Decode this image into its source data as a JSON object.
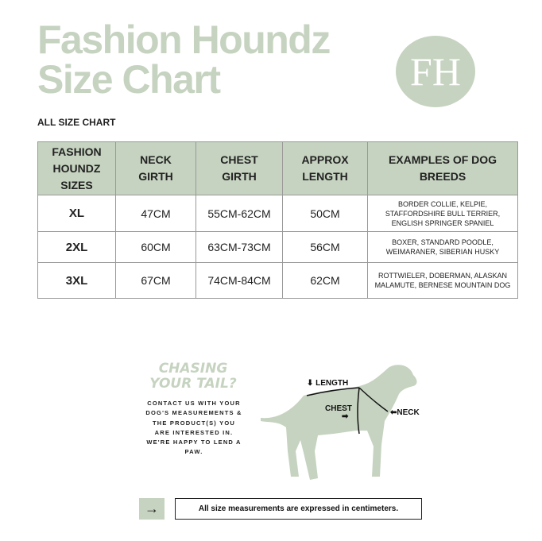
{
  "header": {
    "title_line1": "Fashion Houndz",
    "title_line2": "Size Chart",
    "logo": "FH",
    "subtitle": "ALL SIZE CHART"
  },
  "colors": {
    "accent": "#c6d3c0"
  },
  "table": {
    "headers": [
      "FASHION HOUNDZ SIZES",
      "NECK GIRTH",
      "CHEST GIRTH",
      "APPROX LENGTH",
      "EXAMPLES OF DOG BREEDS"
    ],
    "rows": [
      [
        "XL",
        "47CM",
        "55CM-62CM",
        "50CM",
        "BORDER COLLIE, KELPIE, STAFFORDSHIRE BULL TERRIER, ENGLISH SPRINGER SPANIEL"
      ],
      [
        "2XL",
        "60CM",
        "63CM-73CM",
        "56CM",
        "BOXER, STANDARD POODLE, WEIMARANER, SIBERIAN HUSKY"
      ],
      [
        "3XL",
        "67CM",
        "74CM-84CM",
        "62CM",
        "ROTTWIELER, DOBERMAN, ALASKAN MALAMUTE, BERNESE MOUNTAIN DOG"
      ]
    ]
  },
  "promo": {
    "heading_line1": "CHASING",
    "heading_line2": "YOUR TAIL?",
    "text": "CONTACT US WITH YOUR DOG'S MEASUREMENTS & THE PRODUCT(S) YOU ARE INTERESTED IN. WE'RE HAPPY TO LEND A PAW."
  },
  "diagram": {
    "length": "⬇ LENGTH",
    "chest": "CHEST",
    "chest_arrow": "➡",
    "neck": "⬅NECK"
  },
  "footer": {
    "arrow_icon": "arrow-right-icon",
    "note": "All size measurements are expressed in centimeters."
  }
}
